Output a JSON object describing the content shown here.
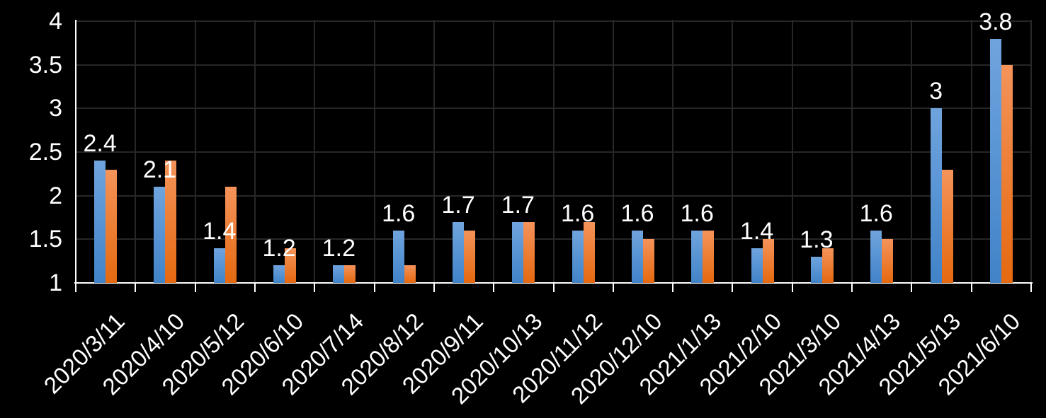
{
  "chart_data": {
    "type": "bar",
    "title": "",
    "xlabel": "",
    "ylabel": "",
    "categories": [
      "2020/3/11",
      "2020/4/10",
      "2020/5/12",
      "2020/6/10",
      "2020/7/14",
      "2020/8/12",
      "2020/9/11",
      "2020/10/13",
      "2020/11/12",
      "2020/12/10",
      "2021/1/13",
      "2021/2/10",
      "2021/3/10",
      "2021/4/13",
      "2021/5/13",
      "2021/6/10"
    ],
    "series": [
      {
        "name": "blue",
        "color_top": "#6FA4DE",
        "color_bottom": "#4183C8",
        "values": [
          2.4,
          2.1,
          1.4,
          1.2,
          1.2,
          1.6,
          1.7,
          1.7,
          1.6,
          1.6,
          1.6,
          1.4,
          1.3,
          1.6,
          3,
          3.8
        ]
      },
      {
        "name": "orange",
        "color_top": "#F4935A",
        "color_bottom": "#E56910",
        "values": [
          2.3,
          2.4,
          2.1,
          1.4,
          1.2,
          1.2,
          1.6,
          1.7,
          1.7,
          1.5,
          1.6,
          1.5,
          1.4,
          1.5,
          2.3,
          3.5
        ]
      }
    ],
    "data_labels": {
      "series": "blue",
      "values": [
        "2.4",
        "2.1",
        "1.4",
        "1.2",
        "1.2",
        "1.6",
        "1.7",
        "1.7",
        "1.6",
        "1.6",
        "1.6",
        "1.4",
        "1.3",
        "1.6",
        "3",
        "3.8"
      ]
    },
    "yaxis": {
      "min": 1,
      "max": 4,
      "ticks": [
        1,
        1.5,
        2,
        2.5,
        3,
        3.5,
        4
      ],
      "tick_labels": [
        "1",
        "1.5",
        "2",
        "2.5",
        "3",
        "3.5",
        "4"
      ]
    },
    "grid": true,
    "legend": false,
    "colors": {
      "background": "#000000",
      "gridline": "#272727",
      "axis": "#FFFFFF",
      "text": "#FFFFFF"
    }
  }
}
